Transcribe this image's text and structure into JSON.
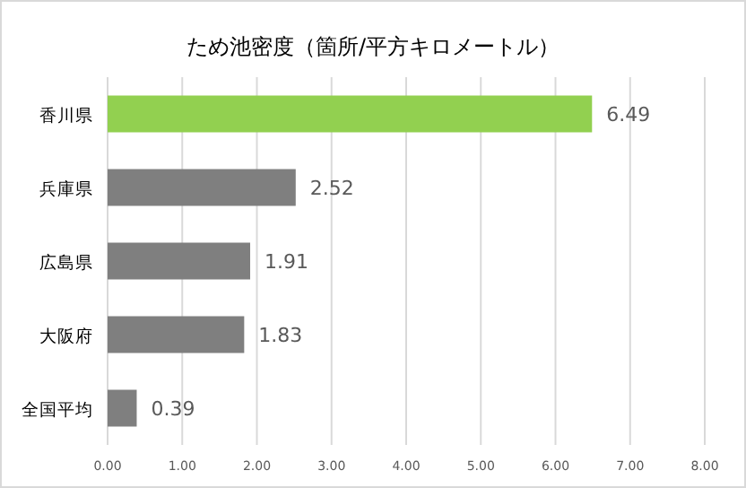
{
  "chart_data": {
    "type": "bar",
    "orientation": "horizontal",
    "title": "ため池密度（箇所/平方キロメートル）",
    "categories": [
      "香川県",
      "兵庫県",
      "広島県",
      "大阪府",
      "全国平均"
    ],
    "values": [
      6.49,
      2.52,
      1.91,
      1.83,
      0.39
    ],
    "colors": [
      "#92d050",
      "#7f7f7f",
      "#7f7f7f",
      "#7f7f7f",
      "#7f7f7f"
    ],
    "xlim": [
      0,
      8
    ],
    "xticks": [
      {
        "value": 0,
        "label": "0.00"
      },
      {
        "value": 1,
        "label": "1.00"
      },
      {
        "value": 2,
        "label": "2.00"
      },
      {
        "value": 3,
        "label": "3.00"
      },
      {
        "value": 4,
        "label": "4.00"
      },
      {
        "value": 5,
        "label": "5.00"
      },
      {
        "value": 6,
        "label": "6.00"
      },
      {
        "value": 7,
        "label": "7.00"
      },
      {
        "value": 8,
        "label": "8.00"
      }
    ],
    "grid": "x",
    "data_labels": true
  }
}
